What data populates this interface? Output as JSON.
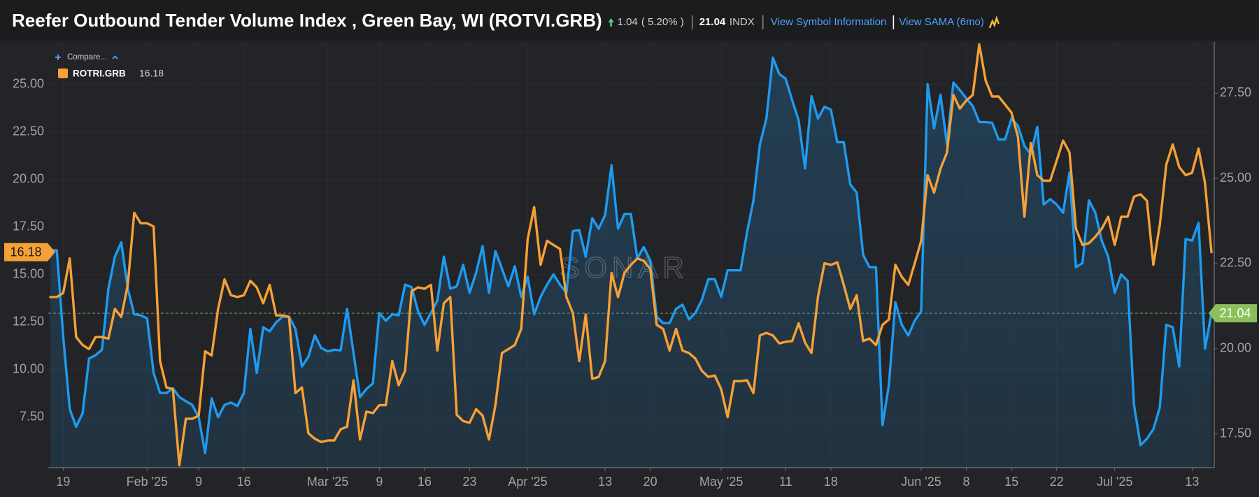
{
  "chart_data": {
    "type": "line",
    "title": "Reefer Outbound Tender Volume Index , Green Bay, WI (ROTVI.GRB)",
    "change": 1.04,
    "change_percent": "( 5.20% )",
    "unit": "INDX",
    "links": [
      "View Symbol Information",
      "View SAMA (6mo)"
    ],
    "compare": "Compare...",
    "watermark": "SONAR",
    "x": [
      "2025-01-17",
      "2025-01-18",
      "2025-01-19",
      "2025-01-20",
      "2025-01-21",
      "2025-01-22",
      "2025-01-23",
      "2025-01-24",
      "2025-01-25",
      "2025-01-26",
      "2025-01-27",
      "2025-01-28",
      "2025-01-29",
      "2025-01-30",
      "2025-01-31",
      "2025-02-01",
      "2025-02-02",
      "2025-02-03",
      "2025-02-04",
      "2025-02-05",
      "2025-02-06",
      "2025-02-07",
      "2025-02-08",
      "2025-02-09",
      "2025-02-10",
      "2025-02-11",
      "2025-02-12",
      "2025-02-13",
      "2025-02-14",
      "2025-02-15",
      "2025-02-16",
      "2025-02-17",
      "2025-02-18",
      "2025-02-19",
      "2025-02-20",
      "2025-02-21",
      "2025-02-22",
      "2025-02-23",
      "2025-02-24",
      "2025-02-25",
      "2025-02-26",
      "2025-02-27",
      "2025-02-28",
      "2025-03-01",
      "2025-03-02",
      "2025-03-03",
      "2025-03-04",
      "2025-03-05",
      "2025-03-06",
      "2025-03-07",
      "2025-03-08",
      "2025-03-09",
      "2025-03-10",
      "2025-03-11",
      "2025-03-12",
      "2025-03-13",
      "2025-03-14",
      "2025-03-15",
      "2025-03-16",
      "2025-03-17",
      "2025-03-18",
      "2025-03-19",
      "2025-03-20",
      "2025-03-21",
      "2025-03-22",
      "2025-03-23",
      "2025-03-24",
      "2025-03-25",
      "2025-03-26",
      "2025-03-27",
      "2025-03-28",
      "2025-03-29",
      "2025-03-30",
      "2025-03-31",
      "2025-04-01",
      "2025-04-02",
      "2025-04-03",
      "2025-04-04",
      "2025-04-05",
      "2025-04-06",
      "2025-04-07",
      "2025-04-08",
      "2025-04-09",
      "2025-04-10",
      "2025-04-11",
      "2025-04-12",
      "2025-04-13",
      "2025-04-14",
      "2025-04-15",
      "2025-04-16",
      "2025-04-17",
      "2025-04-18",
      "2025-04-19",
      "2025-04-20",
      "2025-04-21",
      "2025-04-22",
      "2025-04-23",
      "2025-04-24",
      "2025-04-25",
      "2025-04-26",
      "2025-04-27",
      "2025-04-28",
      "2025-04-29",
      "2025-04-30",
      "2025-05-01",
      "2025-05-02",
      "2025-05-03",
      "2025-05-04",
      "2025-05-05",
      "2025-05-06",
      "2025-05-07",
      "2025-05-08",
      "2025-05-09",
      "2025-05-10",
      "2025-05-11",
      "2025-05-12",
      "2025-05-13",
      "2025-05-14",
      "2025-05-15",
      "2025-05-16",
      "2025-05-17",
      "2025-05-18",
      "2025-05-19",
      "2025-05-20",
      "2025-05-21",
      "2025-05-22",
      "2025-05-23",
      "2025-05-24",
      "2025-05-25",
      "2025-05-26",
      "2025-05-27",
      "2025-05-28",
      "2025-05-29",
      "2025-05-30",
      "2025-05-31",
      "2025-06-01",
      "2025-06-02",
      "2025-06-03",
      "2025-06-04",
      "2025-06-05",
      "2025-06-06",
      "2025-06-07",
      "2025-06-08",
      "2025-06-09",
      "2025-06-10",
      "2025-06-11",
      "2025-06-12",
      "2025-06-13",
      "2025-06-14",
      "2025-06-15",
      "2025-06-16",
      "2025-06-17",
      "2025-06-18",
      "2025-06-19",
      "2025-06-20",
      "2025-06-21",
      "2025-06-22",
      "2025-06-23",
      "2025-06-24",
      "2025-06-25",
      "2025-06-26",
      "2025-06-27",
      "2025-06-28",
      "2025-06-29",
      "2025-06-30",
      "2025-07-01",
      "2025-07-02",
      "2025-07-03",
      "2025-07-04",
      "2025-07-05",
      "2025-07-06",
      "2025-07-07",
      "2025-07-08",
      "2025-07-09",
      "2025-07-10",
      "2025-07-11",
      "2025-07-12",
      "2025-07-13",
      "2025-07-14",
      "2025-07-15",
      "2025-07-16"
    ],
    "series": [
      {
        "color": "#1e9bf0",
        "axis": "y2",
        "area": true,
        "badge_color": "#8cbf5c",
        "values": [
          22.89,
          22.89,
          20.35,
          18.23,
          17.71,
          18.11,
          19.71,
          19.81,
          19.97,
          21.76,
          22.7,
          23.12,
          21.76,
          21.01,
          20.98,
          20.89,
          19.29,
          18.7,
          18.7,
          18.84,
          18.58,
          18.46,
          18.35,
          17.99,
          16.94,
          18.54,
          17.99,
          18.35,
          18.42,
          18.32,
          18.7,
          20.58,
          19.29,
          20.63,
          20.51,
          20.77,
          20.94,
          20.94,
          20.58,
          19.48,
          19.76,
          20.39,
          20.02,
          19.92,
          19.97,
          19.95,
          21.17,
          19.88,
          18.58,
          18.82,
          18.98,
          21.05,
          20.82,
          21.01,
          20.98,
          21.88,
          21.81,
          21.1,
          20.7,
          21.05,
          21.41,
          22.7,
          21.76,
          21.83,
          22.46,
          21.64,
          22.23,
          23.01,
          21.64,
          22.86,
          22.35,
          21.83,
          22.42,
          21.52,
          22.11,
          21.01,
          21.52,
          21.88,
          22.18,
          21.88,
          21.64,
          23.45,
          23.48,
          22.7,
          23.83,
          23.52,
          23.92,
          25.38,
          23.52,
          23.95,
          23.95,
          22.65,
          22.98,
          22.58,
          20.94,
          20.75,
          20.75,
          21.17,
          21.29,
          20.86,
          21.05,
          21.43,
          22.04,
          22.04,
          21.52,
          22.3,
          22.3,
          22.3,
          23.41,
          24.35,
          25.99,
          26.75,
          28.54,
          28.06,
          27.92,
          27.29,
          26.7,
          25.29,
          27.41,
          26.75,
          27.1,
          27.01,
          26.06,
          26.06,
          24.82,
          24.58,
          22.75,
          22.39,
          22.39,
          17.76,
          18.94,
          21.36,
          20.7,
          20.39,
          20.82,
          21.1,
          27.76,
          26.46,
          27.45,
          25.99,
          27.81,
          27.59,
          27.34,
          27.12,
          26.65,
          26.65,
          26.63,
          26.14,
          26.14,
          26.75,
          26.54,
          25.95,
          25.71,
          26.51,
          24.23,
          24.39,
          24.23,
          23.99,
          25.17,
          22.39,
          22.51,
          24.35,
          23.99,
          23.17,
          22.7,
          21.64,
          22.18,
          21.99,
          18.35,
          17.17,
          17.36,
          17.64,
          18.28,
          20.7,
          20.63,
          19.48,
          23.22,
          23.17,
          23.69,
          20.0,
          21.04
        ]
      },
      {
        "name": "ROTRI.GRB",
        "color": "#f7a035",
        "values": [
          13.82,
          13.82,
          14.03,
          15.85,
          11.71,
          11.29,
          11.08,
          11.71,
          11.71,
          11.63,
          13.19,
          12.77,
          14.46,
          18.25,
          17.7,
          17.7,
          17.53,
          10.45,
          9.06,
          8.97,
          4.97,
          7.41,
          7.41,
          7.58,
          10.96,
          10.74,
          13.19,
          14.75,
          13.91,
          13.82,
          13.91,
          14.67,
          14.33,
          13.49,
          14.46,
          12.85,
          12.85,
          12.77,
          8.76,
          9.06,
          6.65,
          6.36,
          6.19,
          6.27,
          6.27,
          6.86,
          6.99,
          9.44,
          6.32,
          7.79,
          7.71,
          8.13,
          8.13,
          10.45,
          9.18,
          9.94,
          14.12,
          14.33,
          14.25,
          14.46,
          11.0,
          13.49,
          13.82,
          7.62,
          7.29,
          7.2,
          7.92,
          7.58,
          6.32,
          8.13,
          10.87,
          11.08,
          11.29,
          12.14,
          16.86,
          18.55,
          15.51,
          16.78,
          16.56,
          16.35,
          13.82,
          12.98,
          10.45,
          12.9,
          9.52,
          9.61,
          10.45,
          15.09,
          13.82,
          15.09,
          15.51,
          15.85,
          15.72,
          15.3,
          12.35,
          12.14,
          11.0,
          12.14,
          11.0,
          10.87,
          10.58,
          9.94,
          9.61,
          9.69,
          8.97,
          7.5,
          9.39,
          9.39,
          9.44,
          8.76,
          11.8,
          11.93,
          11.8,
          11.38,
          11.46,
          11.5,
          12.43,
          11.42,
          10.87,
          13.82,
          15.59,
          15.51,
          15.64,
          14.46,
          13.19,
          13.91,
          11.5,
          11.63,
          11.29,
          12.35,
          12.64,
          15.51,
          14.88,
          14.46,
          15.59,
          16.78,
          20.23,
          19.31,
          20.57,
          21.42,
          24.45,
          23.73,
          24.16,
          24.45,
          27.11,
          25.21,
          24.37,
          24.37,
          23.95,
          23.52,
          22.26,
          18.04,
          21.92,
          20.23,
          19.94,
          19.94,
          20.99,
          22.05,
          21.42,
          17.41,
          16.56,
          16.65,
          16.99,
          17.41,
          18.04,
          16.56,
          18.04,
          18.04,
          19.1,
          19.22,
          18.88,
          15.51,
          17.62,
          20.78,
          21.84,
          20.66,
          20.23,
          20.36,
          21.63,
          19.81,
          16.18
        ]
      }
    ],
    "xlim": [
      "2025-01-17",
      "2025-07-16"
    ],
    "xticks": [
      {
        "value": "2025-01-19",
        "label": "19"
      },
      {
        "value": "2025-02-01",
        "label": "Feb '25"
      },
      {
        "value": "2025-02-09",
        "label": "9"
      },
      {
        "value": "2025-02-16",
        "label": "16"
      },
      {
        "value": "2025-03-01",
        "label": "Mar '25"
      },
      {
        "value": "2025-03-09",
        "label": "9"
      },
      {
        "value": "2025-03-16",
        "label": "16"
      },
      {
        "value": "2025-03-23",
        "label": "23"
      },
      {
        "value": "2025-04-01",
        "label": "Apr '25"
      },
      {
        "value": "2025-04-13",
        "label": "13"
      },
      {
        "value": "2025-04-20",
        "label": "20"
      },
      {
        "value": "2025-05-01",
        "label": "May '25"
      },
      {
        "value": "2025-05-11",
        "label": "11"
      },
      {
        "value": "2025-05-18",
        "label": "18"
      },
      {
        "value": "2025-06-01",
        "label": "Jun '25"
      },
      {
        "value": "2025-06-08",
        "label": "8"
      },
      {
        "value": "2025-06-15",
        "label": "15"
      },
      {
        "value": "2025-06-22",
        "label": "22"
      },
      {
        "value": "2025-07-01",
        "label": "Jul '25"
      },
      {
        "value": "2025-07-13",
        "label": "13"
      }
    ],
    "ylim": [
      4.84,
      27.24
    ],
    "yticks": [
      {
        "value": 7.5,
        "label": "7.50"
      },
      {
        "value": 10,
        "label": "10.00"
      },
      {
        "value": 12.5,
        "label": "12.50"
      },
      {
        "value": 15,
        "label": "15.00"
      },
      {
        "value": 17.5,
        "label": "17.50"
      },
      {
        "value": 20,
        "label": "20.00"
      },
      {
        "value": 22.5,
        "label": "22.50"
      },
      {
        "value": 25,
        "label": "25.00"
      }
    ],
    "y2lim": [
      16.51,
      29.0
    ],
    "y2ticks": [
      {
        "value": 17.5,
        "label": "17.50"
      },
      {
        "value": 20,
        "label": "20.00"
      },
      {
        "value": 22.5,
        "label": "22.50"
      },
      {
        "value": 25,
        "label": "25.00"
      },
      {
        "value": 27.5,
        "label": "27.50"
      }
    ],
    "grid": true
  }
}
